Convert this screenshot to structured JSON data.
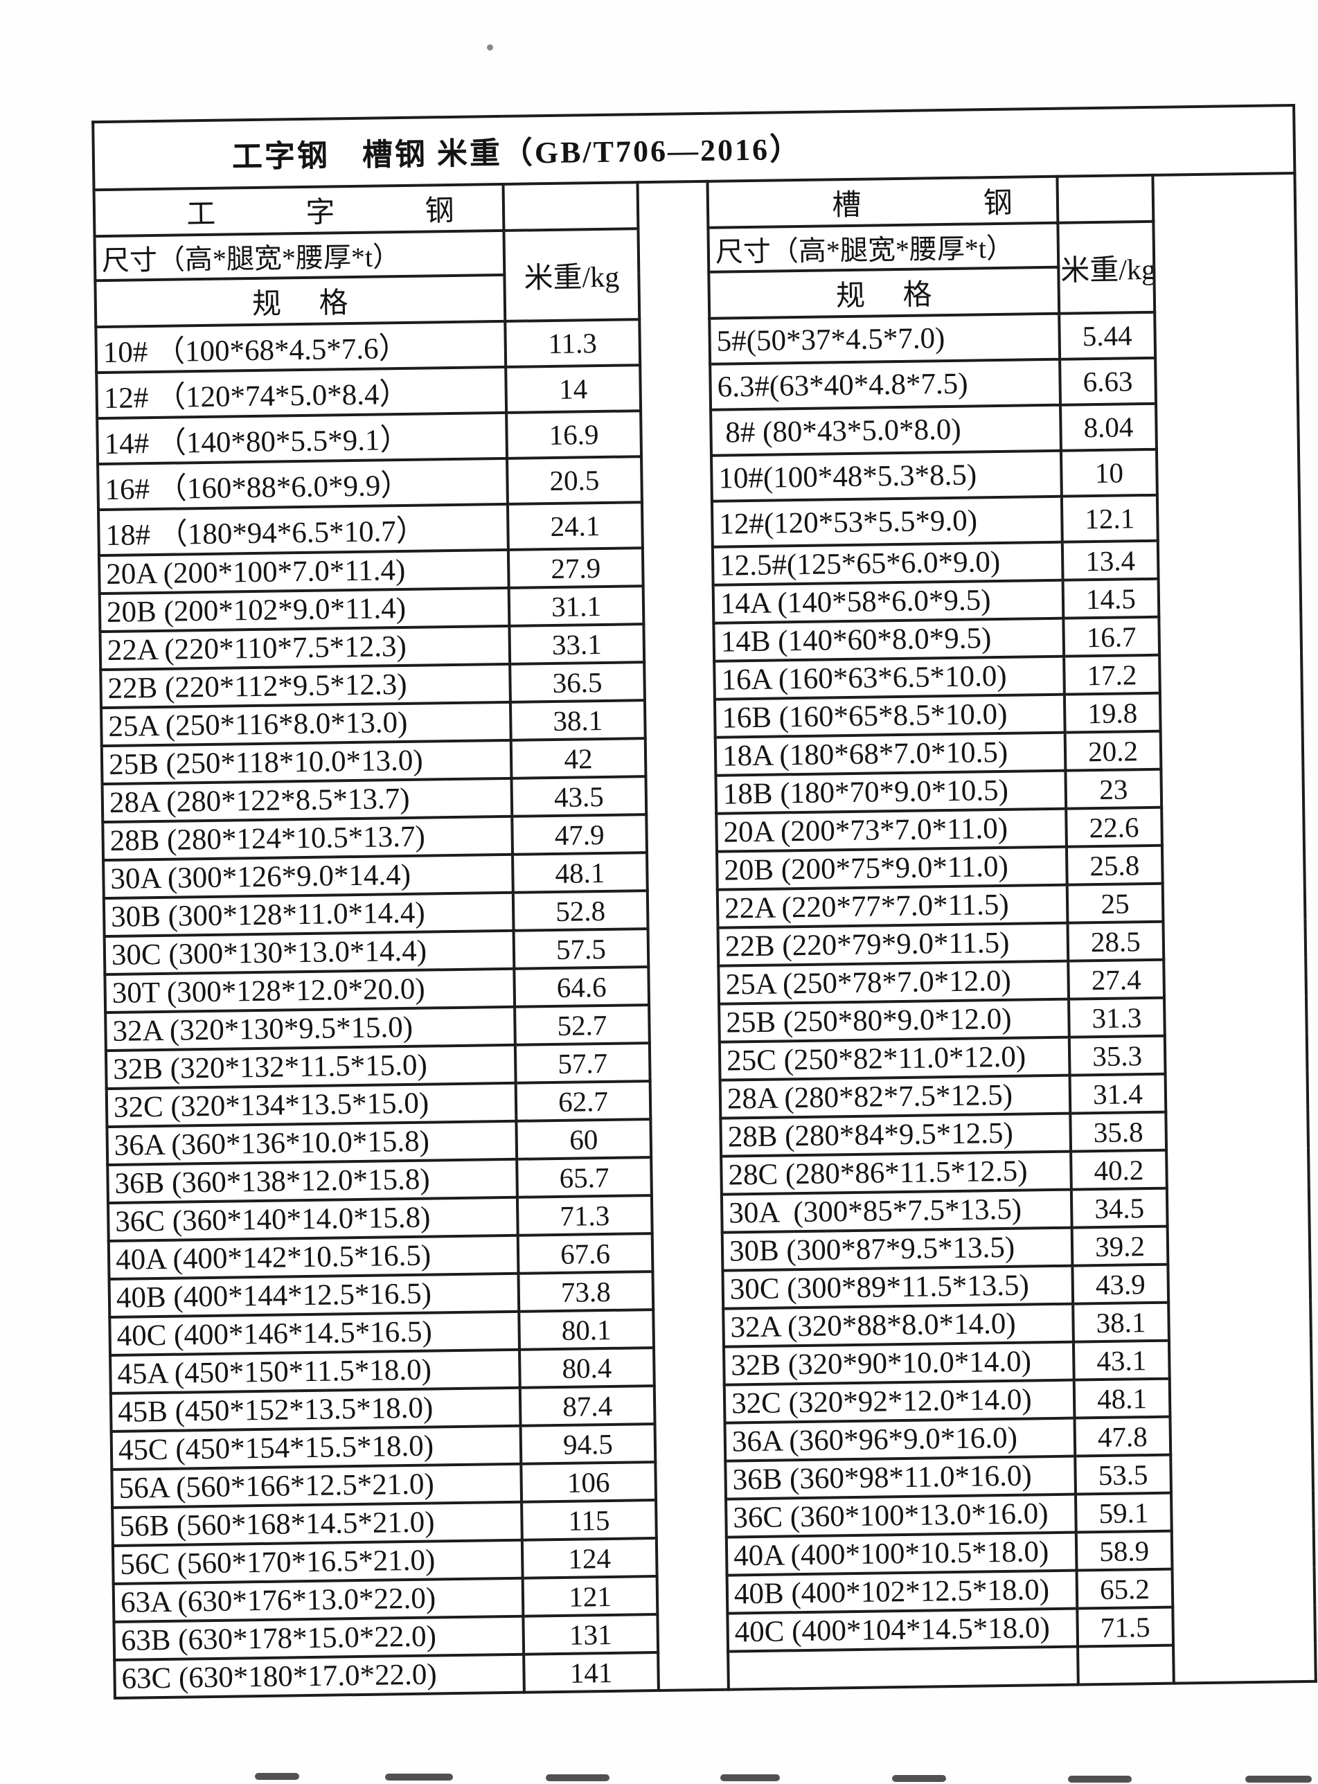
{
  "page": {
    "title": "工字钢　槽钢 米重（GB/T706—2016）"
  },
  "left_table": {
    "section_title": "工字钢",
    "size_header": "尺寸（高*腿宽*腰厚*t）",
    "spec_header": "规格",
    "weight_header": "米重/kg",
    "rows": [
      {
        "spec": "10# （100*68*4.5*7.6）",
        "wt": "11.3"
      },
      {
        "spec": "12# （120*74*5.0*8.4）",
        "wt": "14"
      },
      {
        "spec": "14# （140*80*5.5*9.1）",
        "wt": "16.9"
      },
      {
        "spec": "16# （160*88*6.0*9.9）",
        "wt": "20.5"
      },
      {
        "spec": "18# （180*94*6.5*10.7）",
        "wt": "24.1"
      },
      {
        "spec": "20A (200*100*7.0*11.4)",
        "wt": "27.9"
      },
      {
        "spec": "20B (200*102*9.0*11.4)",
        "wt": "31.1"
      },
      {
        "spec": "22A (220*110*7.5*12.3)",
        "wt": "33.1"
      },
      {
        "spec": "22B (220*112*9.5*12.3)",
        "wt": "36.5"
      },
      {
        "spec": "25A (250*116*8.0*13.0)",
        "wt": "38.1"
      },
      {
        "spec": "25B (250*118*10.0*13.0)",
        "wt": "42"
      },
      {
        "spec": "28A (280*122*8.5*13.7)",
        "wt": "43.5"
      },
      {
        "spec": "28B (280*124*10.5*13.7)",
        "wt": "47.9"
      },
      {
        "spec": "30A (300*126*9.0*14.4)",
        "wt": "48.1"
      },
      {
        "spec": "30B (300*128*11.0*14.4)",
        "wt": "52.8"
      },
      {
        "spec": "30C (300*130*13.0*14.4)",
        "wt": "57.5"
      },
      {
        "spec": "30T (300*128*12.0*20.0)",
        "wt": "64.6"
      },
      {
        "spec": "32A (320*130*9.5*15.0)",
        "wt": "52.7"
      },
      {
        "spec": "32B (320*132*11.5*15.0)",
        "wt": "57.7"
      },
      {
        "spec": "32C (320*134*13.5*15.0)",
        "wt": "62.7"
      },
      {
        "spec": "36A (360*136*10.0*15.8)",
        "wt": "60"
      },
      {
        "spec": "36B (360*138*12.0*15.8)",
        "wt": "65.7"
      },
      {
        "spec": "36C (360*140*14.0*15.8)",
        "wt": "71.3"
      },
      {
        "spec": "40A (400*142*10.5*16.5)",
        "wt": "67.6"
      },
      {
        "spec": "40B (400*144*12.5*16.5)",
        "wt": "73.8"
      },
      {
        "spec": "40C (400*146*14.5*16.5)",
        "wt": "80.1"
      },
      {
        "spec": "45A (450*150*11.5*18.0)",
        "wt": "80.4"
      },
      {
        "spec": "45B (450*152*13.5*18.0)",
        "wt": "87.4"
      },
      {
        "spec": "45C (450*154*15.5*18.0)",
        "wt": "94.5"
      },
      {
        "spec": "56A (560*166*12.5*21.0)",
        "wt": "106"
      },
      {
        "spec": "56B (560*168*14.5*21.0)",
        "wt": "115"
      },
      {
        "spec": "56C (560*170*16.5*21.0)",
        "wt": "124"
      },
      {
        "spec": "63A (630*176*13.0*22.0)",
        "wt": "121"
      },
      {
        "spec": "63B (630*178*15.0*22.0)",
        "wt": "131"
      },
      {
        "spec": "63C (630*180*17.0*22.0)",
        "wt": "141"
      }
    ]
  },
  "right_table": {
    "section_title": "槽钢",
    "size_header": "尺寸（高*腿宽*腰厚*t）",
    "spec_header": "规格",
    "weight_header": "米重/kg",
    "rows": [
      {
        "spec": "5#(50*37*4.5*7.0)",
        "wt": "5.44"
      },
      {
        "spec": "6.3#(63*40*4.8*7.5)",
        "wt": "6.63"
      },
      {
        "spec": " 8# (80*43*5.0*8.0)",
        "wt": "8.04"
      },
      {
        "spec": "10#(100*48*5.3*8.5)",
        "wt": "10"
      },
      {
        "spec": "12#(120*53*5.5*9.0)",
        "wt": "12.1"
      },
      {
        "spec": "12.5#(125*65*6.0*9.0)",
        "wt": "13.4"
      },
      {
        "spec": "14A (140*58*6.0*9.5)",
        "wt": "14.5"
      },
      {
        "spec": "14B (140*60*8.0*9.5)",
        "wt": "16.7"
      },
      {
        "spec": "16A (160*63*6.5*10.0)",
        "wt": "17.2"
      },
      {
        "spec": "16B (160*65*8.5*10.0)",
        "wt": "19.8"
      },
      {
        "spec": "18A (180*68*7.0*10.5)",
        "wt": "20.2"
      },
      {
        "spec": "18B (180*70*9.0*10.5)",
        "wt": "23"
      },
      {
        "spec": "20A (200*73*7.0*11.0)",
        "wt": "22.6"
      },
      {
        "spec": "20B (200*75*9.0*11.0)",
        "wt": "25.8"
      },
      {
        "spec": "22A (220*77*7.0*11.5)",
        "wt": "25"
      },
      {
        "spec": "22B (220*79*9.0*11.5)",
        "wt": "28.5"
      },
      {
        "spec": "25A (250*78*7.0*12.0)",
        "wt": "27.4"
      },
      {
        "spec": "25B (250*80*9.0*12.0)",
        "wt": "31.3"
      },
      {
        "spec": "25C (250*82*11.0*12.0)",
        "wt": "35.3"
      },
      {
        "spec": "28A (280*82*7.5*12.5)",
        "wt": "31.4"
      },
      {
        "spec": "28B (280*84*9.5*12.5)",
        "wt": "35.8"
      },
      {
        "spec": "28C (280*86*11.5*12.5)",
        "wt": "40.2"
      },
      {
        "spec": "30A  (300*85*7.5*13.5)",
        "wt": "34.5"
      },
      {
        "spec": "30B (300*87*9.5*13.5)",
        "wt": "39.2"
      },
      {
        "spec": "30C (300*89*11.5*13.5)",
        "wt": "43.9"
      },
      {
        "spec": "32A (320*88*8.0*14.0)",
        "wt": "38.1"
      },
      {
        "spec": "32B (320*90*10.0*14.0)",
        "wt": "43.1"
      },
      {
        "spec": "32C (320*92*12.0*14.0)",
        "wt": "48.1"
      },
      {
        "spec": "36A (360*96*9.0*16.0)",
        "wt": "47.8"
      },
      {
        "spec": "36B (360*98*11.0*16.0)",
        "wt": "53.5"
      },
      {
        "spec": "36C (360*100*13.0*16.0)",
        "wt": "59.1"
      },
      {
        "spec": "40A (400*100*10.5*18.0)",
        "wt": "58.9"
      },
      {
        "spec": "40B (400*102*12.5*18.0)",
        "wt": "65.2"
      },
      {
        "spec": "40C (400*104*14.5*18.0)",
        "wt": "71.5"
      },
      {
        "spec": "",
        "wt": ""
      }
    ]
  }
}
